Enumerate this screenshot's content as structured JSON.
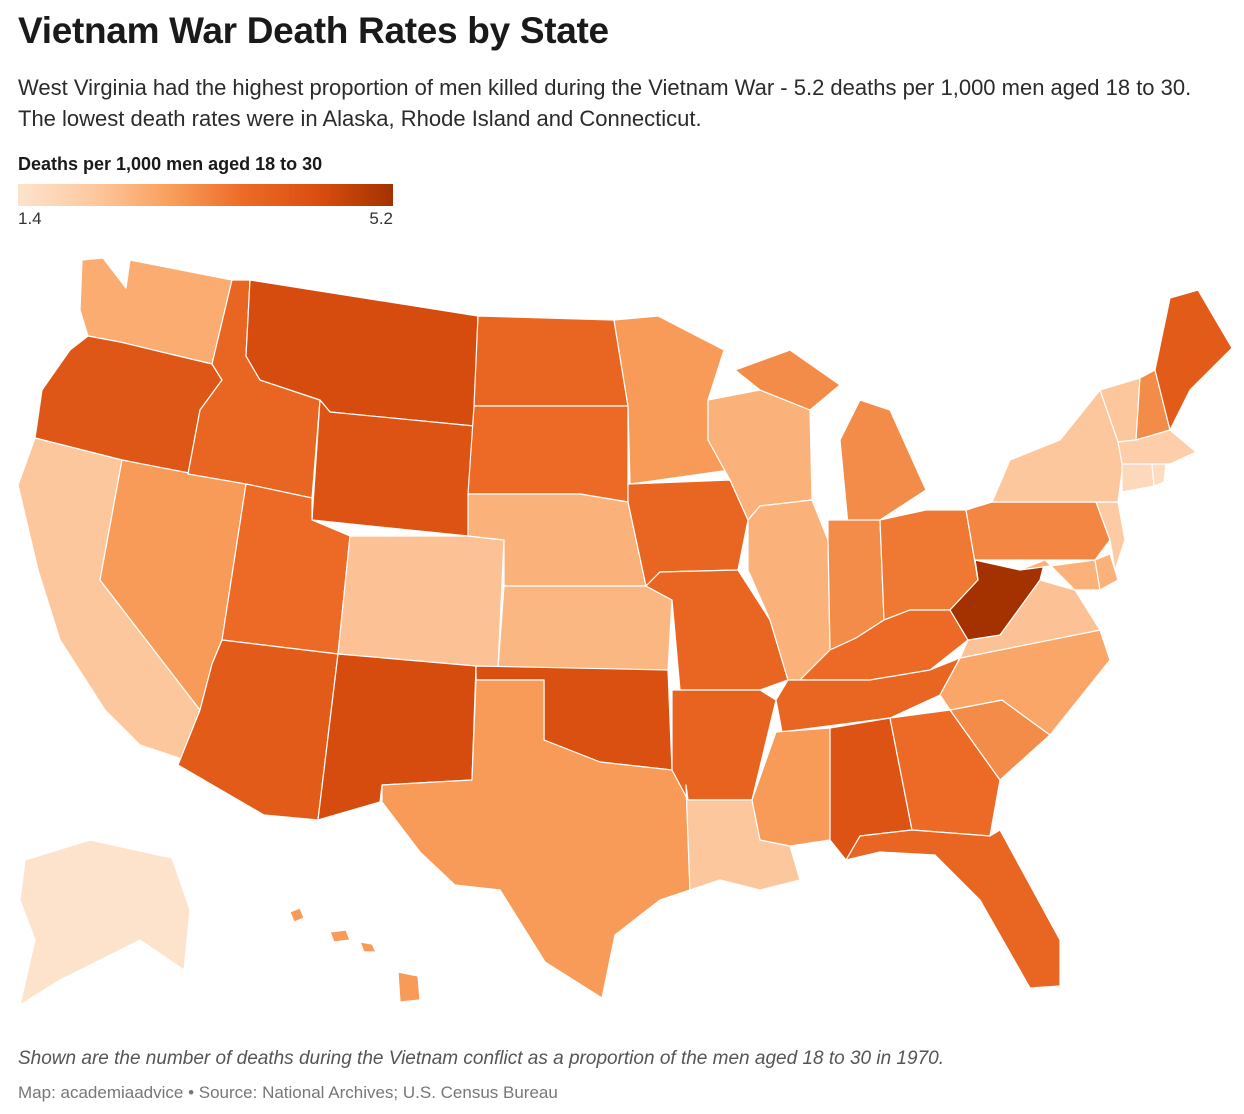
{
  "title": "Vietnam War Death Rates by State",
  "subtitle": "West Virginia had the highest proportion of men killed during the Vietnam War - 5.2 deaths per 1,000 men aged 18 to 30. The lowest death rates were in Alaska, Rhode Island and Connecticut.",
  "legend": {
    "title": "Deaths per 1,000 men aged 18 to 30",
    "min_label": "1.4",
    "max_label": "5.2",
    "min": 1.4,
    "max": 5.2,
    "colors": [
      "#fde3cc",
      "#fdc9a0",
      "#f9a05e",
      "#ec6b26",
      "#d94e0f",
      "#a33200"
    ]
  },
  "note": "Shown are the number of deaths during the Vietnam conflict as a proportion of the men aged 18 to 30 in 1970.",
  "credit": "Map: academiaadvice • Source: National Archives; U.S. Census Bureau",
  "states": {
    "WA": {
      "name": "Washington",
      "rate": 2.7
    },
    "OR": {
      "name": "Oregon",
      "rate": 4.2
    },
    "CA": {
      "name": "California",
      "rate": 2.2
    },
    "NV": {
      "name": "Nevada",
      "rate": 3.0
    },
    "ID": {
      "name": "Idaho",
      "rate": 3.8
    },
    "MT": {
      "name": "Montana",
      "rate": 4.5
    },
    "WY": {
      "name": "Wyoming",
      "rate": 4.3
    },
    "UT": {
      "name": "Utah",
      "rate": 3.7
    },
    "AZ": {
      "name": "Arizona",
      "rate": 4.1
    },
    "CO": {
      "name": "Colorado",
      "rate": 2.3
    },
    "NM": {
      "name": "New Mexico",
      "rate": 4.5
    },
    "ND": {
      "name": "North Dakota",
      "rate": 3.8
    },
    "SD": {
      "name": "South Dakota",
      "rate": 3.7
    },
    "NE": {
      "name": "Nebraska",
      "rate": 2.6
    },
    "KS": {
      "name": "Kansas",
      "rate": 2.5
    },
    "OK": {
      "name": "Oklahoma",
      "rate": 4.4
    },
    "TX": {
      "name": "Texas",
      "rate": 3.0
    },
    "MN": {
      "name": "Minnesota",
      "rate": 3.0
    },
    "IA": {
      "name": "Iowa",
      "rate": 3.8
    },
    "MO": {
      "name": "Missouri",
      "rate": 3.8
    },
    "AR": {
      "name": "Arkansas",
      "rate": 3.9
    },
    "LA": {
      "name": "Louisiana",
      "rate": 2.2
    },
    "WI": {
      "name": "Wisconsin",
      "rate": 2.6
    },
    "IL": {
      "name": "Illinois",
      "rate": 2.6
    },
    "MI": {
      "name": "Michigan",
      "rate": 3.2
    },
    "IN": {
      "name": "Indiana",
      "rate": 3.2
    },
    "OH": {
      "name": "Ohio",
      "rate": 3.5
    },
    "KY": {
      "name": "Kentucky",
      "rate": 3.7
    },
    "TN": {
      "name": "Tennessee",
      "rate": 3.8
    },
    "MS": {
      "name": "Mississippi",
      "rate": 3.0
    },
    "AL": {
      "name": "Alabama",
      "rate": 4.3
    },
    "GA": {
      "name": "Georgia",
      "rate": 3.7
    },
    "FL": {
      "name": "Florida",
      "rate": 3.8
    },
    "SC": {
      "name": "South Carolina",
      "rate": 3.2
    },
    "NC": {
      "name": "North Carolina",
      "rate": 2.8
    },
    "VA": {
      "name": "Virginia",
      "rate": 2.3
    },
    "WV": {
      "name": "West Virginia",
      "rate": 5.2
    },
    "PA": {
      "name": "Pennsylvania",
      "rate": 3.3
    },
    "NY": {
      "name": "New York",
      "rate": 2.2
    },
    "VT": {
      "name": "Vermont",
      "rate": 2.2
    },
    "NH": {
      "name": "New Hampshire",
      "rate": 3.2
    },
    "ME": {
      "name": "Maine",
      "rate": 4.1
    },
    "MA": {
      "name": "Massachusetts",
      "rate": 2.0
    },
    "RI": {
      "name": "Rhode Island",
      "rate": 1.6
    },
    "CT": {
      "name": "Connecticut",
      "rate": 1.7
    },
    "NJ": {
      "name": "New Jersey",
      "rate": 2.1
    },
    "DE": {
      "name": "Delaware",
      "rate": 2.6
    },
    "MD": {
      "name": "Maryland",
      "rate": 2.6
    },
    "AK": {
      "name": "Alaska",
      "rate": 1.4
    },
    "HI": {
      "name": "Hawaii",
      "rate": 3.0
    }
  }
}
